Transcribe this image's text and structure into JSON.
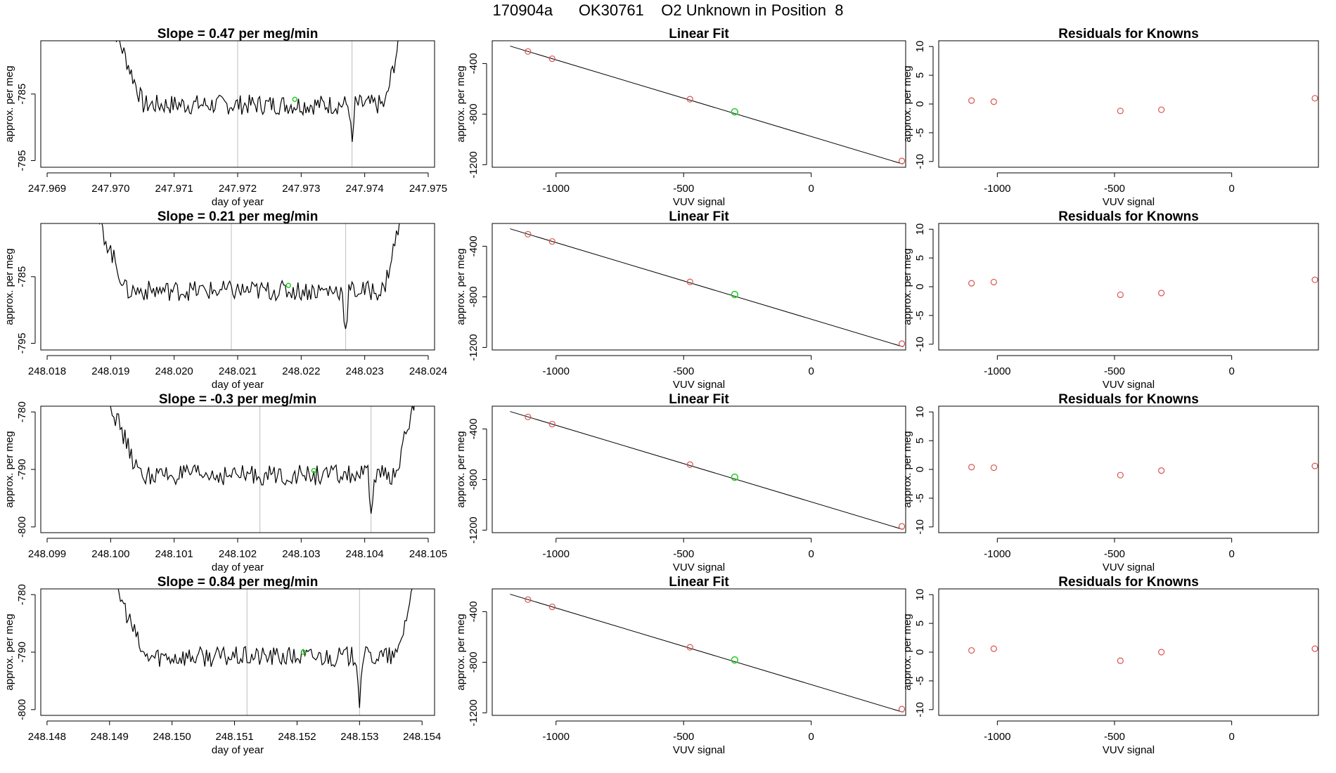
{
  "title": "170904a      OK30761    O2 Unknown in Position  8",
  "colors": {
    "trace": "#000000",
    "known": "#d9534f",
    "unknown": "#22cc22",
    "marker_line": "#c8c8c8",
    "frame": "#000000"
  },
  "chart_data": [
    {
      "type": "line",
      "title": "Slope =  0.47  per meg/min",
      "xlabel": "day of year",
      "ylabel": "approx. per meg",
      "xlim": [
        247.9689,
        247.9751
      ],
      "ylim": [
        -796,
        -777
      ],
      "xticks": [
        "247.969",
        "247.970",
        "247.971",
        "247.972",
        "247.973",
        "247.974",
        "247.975"
      ],
      "xtick_values": [
        247.969,
        247.97,
        247.971,
        247.972,
        247.973,
        247.974,
        247.975
      ],
      "yticks": [
        "-785",
        "-795"
      ],
      "ytick_values": [
        -785,
        -795
      ],
      "vlines": [
        247.972,
        247.9738
      ],
      "start": 247.96995,
      "end": 247.97465,
      "unknown_point": [
        247.9729,
        -785.8
      ]
    },
    {
      "type": "scatter",
      "title": "Linear Fit",
      "xlabel": "VUV signal",
      "ylabel": "approx. per meg",
      "xlim": [
        -1250,
        370
      ],
      "ylim": [
        -1220,
        -220
      ],
      "xticks": [
        "-1000",
        "-500",
        "0"
      ],
      "xtick_values": [
        -1000,
        -500,
        0
      ],
      "yticks": [
        "-400",
        "-800",
        "-1200"
      ],
      "ytick_values": [
        -400,
        -800,
        -1200
      ],
      "fit": [
        [
          -1180,
          -262
        ],
        [
          360,
          -1195
        ]
      ],
      "known_points": [
        [
          -1110,
          -305
        ],
        [
          -1015,
          -362
        ],
        [
          -475,
          -682
        ],
        [
          355,
          -1170
        ]
      ],
      "unknown_point": [
        -300,
        -782
      ]
    },
    {
      "type": "scatter",
      "title": "Residuals for Knowns",
      "xlabel": "VUV signal",
      "ylabel": "approx. per meg",
      "xlim": [
        -1250,
        370
      ],
      "ylim": [
        -11,
        11
      ],
      "xticks": [
        "-1000",
        "-500",
        "0"
      ],
      "xtick_values": [
        -1000,
        -500,
        0
      ],
      "yticks": [
        "10",
        "5",
        "0",
        "-5",
        "-10"
      ],
      "ytick_values": [
        10,
        5,
        0,
        -5,
        -10
      ],
      "known_points": [
        [
          -1110,
          0.6
        ],
        [
          -1015,
          0.4
        ],
        [
          -475,
          -1.2
        ],
        [
          -300,
          -1.0
        ],
        [
          355,
          1.0
        ]
      ]
    },
    {
      "type": "line",
      "title": "Slope =  0.21  per meg/min",
      "xlabel": "day of year",
      "ylabel": "approx. per meg",
      "xlim": [
        248.0179,
        248.0241
      ],
      "ylim": [
        -796,
        -777
      ],
      "xticks": [
        "248.018",
        "248.019",
        "248.020",
        "248.021",
        "248.022",
        "248.023",
        "248.024"
      ],
      "xtick_values": [
        248.018,
        248.019,
        248.02,
        248.021,
        248.022,
        248.023,
        248.024
      ],
      "yticks": [
        "-785",
        "-795"
      ],
      "ytick_values": [
        -785,
        -795
      ],
      "vlines": [
        248.0209,
        248.0227
      ],
      "start": 248.01865,
      "end": 248.02365,
      "unknown_point": [
        248.0218,
        -786.3
      ]
    },
    {
      "type": "scatter",
      "title": "Linear Fit",
      "xlabel": "VUV signal",
      "ylabel": "approx. per meg",
      "xlim": [
        -1250,
        370
      ],
      "ylim": [
        -1220,
        -220
      ],
      "xticks": [
        "-1000",
        "-500",
        "0"
      ],
      "xtick_values": [
        -1000,
        -500,
        0
      ],
      "yticks": [
        "-400",
        "-800",
        "-1200"
      ],
      "ytick_values": [
        -400,
        -800,
        -1200
      ],
      "fit": [
        [
          -1180,
          -262
        ],
        [
          360,
          -1195
        ]
      ],
      "known_points": [
        [
          -1110,
          -305
        ],
        [
          -1015,
          -362
        ],
        [
          -475,
          -682
        ],
        [
          355,
          -1170
        ]
      ],
      "unknown_point": [
        -300,
        -782
      ]
    },
    {
      "type": "scatter",
      "title": "Residuals for Knowns",
      "xlabel": "VUV signal",
      "ylabel": "approx. per meg",
      "xlim": [
        -1250,
        370
      ],
      "ylim": [
        -11,
        11
      ],
      "xticks": [
        "-1000",
        "-500",
        "0"
      ],
      "xtick_values": [
        -1000,
        -500,
        0
      ],
      "yticks": [
        "10",
        "5",
        "0",
        "-5",
        "-10"
      ],
      "ytick_values": [
        10,
        5,
        0,
        -5,
        -10
      ],
      "known_points": [
        [
          -1110,
          0.6
        ],
        [
          -1015,
          0.8
        ],
        [
          -475,
          -1.4
        ],
        [
          -300,
          -1.1
        ],
        [
          355,
          1.2
        ]
      ]
    },
    {
      "type": "line",
      "title": "Slope =  -0.3  per meg/min",
      "xlabel": "day of year",
      "ylabel": "approx. per meg",
      "xlim": [
        248.0989,
        248.1051
      ],
      "ylim": [
        -801,
        -779
      ],
      "xticks": [
        "248.099",
        "248.100",
        "248.101",
        "248.102",
        "248.103",
        "248.104",
        "248.105"
      ],
      "xtick_values": [
        248.099,
        248.1,
        248.101,
        248.102,
        248.103,
        248.104,
        248.105
      ],
      "yticks": [
        "-780",
        "-790",
        "-800"
      ],
      "ytick_values": [
        -780,
        -790,
        -800
      ],
      "vlines": [
        248.10235,
        248.1041
      ],
      "start": 248.09985,
      "end": 248.10485,
      "unknown_point": [
        248.1032,
        -790.2
      ]
    },
    {
      "type": "scatter",
      "title": "Linear Fit",
      "xlabel": "VUV signal",
      "ylabel": "approx. per meg",
      "xlim": [
        -1250,
        370
      ],
      "ylim": [
        -1220,
        -220
      ],
      "xticks": [
        "-1000",
        "-500",
        "0"
      ],
      "xtick_values": [
        -1000,
        -500,
        0
      ],
      "yticks": [
        "-400",
        "-800",
        "-1200"
      ],
      "ytick_values": [
        -400,
        -800,
        -1200
      ],
      "fit": [
        [
          -1180,
          -262
        ],
        [
          360,
          -1195
        ]
      ],
      "known_points": [
        [
          -1110,
          -305
        ],
        [
          -1015,
          -362
        ],
        [
          -475,
          -682
        ],
        [
          355,
          -1170
        ]
      ],
      "unknown_point": [
        -300,
        -782
      ]
    },
    {
      "type": "scatter",
      "title": "Residuals for Knowns",
      "xlabel": "VUV signal",
      "ylabel": "approx. per meg",
      "xlim": [
        -1250,
        370
      ],
      "ylim": [
        -11,
        11
      ],
      "xticks": [
        "-1000",
        "-500",
        "0"
      ],
      "xtick_values": [
        -1000,
        -500,
        0
      ],
      "yticks": [
        "10",
        "5",
        "0",
        "-5",
        "-10"
      ],
      "ytick_values": [
        10,
        5,
        0,
        -5,
        -10
      ],
      "known_points": [
        [
          -1110,
          0.4
        ],
        [
          -1015,
          0.3
        ],
        [
          -475,
          -1.0
        ],
        [
          -300,
          -0.2
        ],
        [
          355,
          0.6
        ]
      ]
    },
    {
      "type": "line",
      "title": "Slope =  0.84  per meg/min",
      "xlabel": "day of year",
      "ylabel": "approx. per meg",
      "xlim": [
        248.1479,
        248.1542
      ],
      "ylim": [
        -801,
        -779
      ],
      "xticks": [
        "248.148",
        "248.149",
        "248.150",
        "248.151",
        "248.152",
        "248.153",
        "248.154"
      ],
      "xtick_values": [
        248.148,
        248.149,
        248.15,
        248.151,
        248.152,
        248.153,
        248.154
      ],
      "yticks": [
        "-780",
        "-790",
        "-800"
      ],
      "ytick_values": [
        -780,
        -790,
        -800
      ],
      "vlines": [
        248.1512,
        248.153
      ],
      "start": 248.14895,
      "end": 248.15395,
      "unknown_point": [
        248.1521,
        -790.0
      ]
    },
    {
      "type": "scatter",
      "title": "Linear Fit",
      "xlabel": "VUV signal",
      "ylabel": "approx. per meg",
      "xlim": [
        -1250,
        370
      ],
      "ylim": [
        -1220,
        -220
      ],
      "xticks": [
        "-1000",
        "-500",
        "0"
      ],
      "xtick_values": [
        -1000,
        -500,
        0
      ],
      "yticks": [
        "-400",
        "-800",
        "-1200"
      ],
      "ytick_values": [
        -400,
        -800,
        -1200
      ],
      "fit": [
        [
          -1180,
          -262
        ],
        [
          360,
          -1195
        ]
      ],
      "known_points": [
        [
          -1110,
          -305
        ],
        [
          -1015,
          -362
        ],
        [
          -475,
          -682
        ],
        [
          355,
          -1170
        ]
      ],
      "unknown_point": [
        -300,
        -782
      ]
    },
    {
      "type": "scatter",
      "title": "Residuals for Knowns",
      "xlabel": "VUV signal",
      "ylabel": "approx. per meg",
      "xlim": [
        -1250,
        370
      ],
      "ylim": [
        -11,
        11
      ],
      "xticks": [
        "-1000",
        "-500",
        "0"
      ],
      "xtick_values": [
        -1000,
        -500,
        0
      ],
      "yticks": [
        "10",
        "5",
        "0",
        "-5",
        "-10"
      ],
      "ytick_values": [
        10,
        5,
        0,
        -5,
        -10
      ],
      "known_points": [
        [
          -1110,
          0.3
        ],
        [
          -1015,
          0.6
        ],
        [
          -475,
          -1.5
        ],
        [
          -300,
          0.0
        ],
        [
          355,
          0.6
        ]
      ]
    }
  ]
}
